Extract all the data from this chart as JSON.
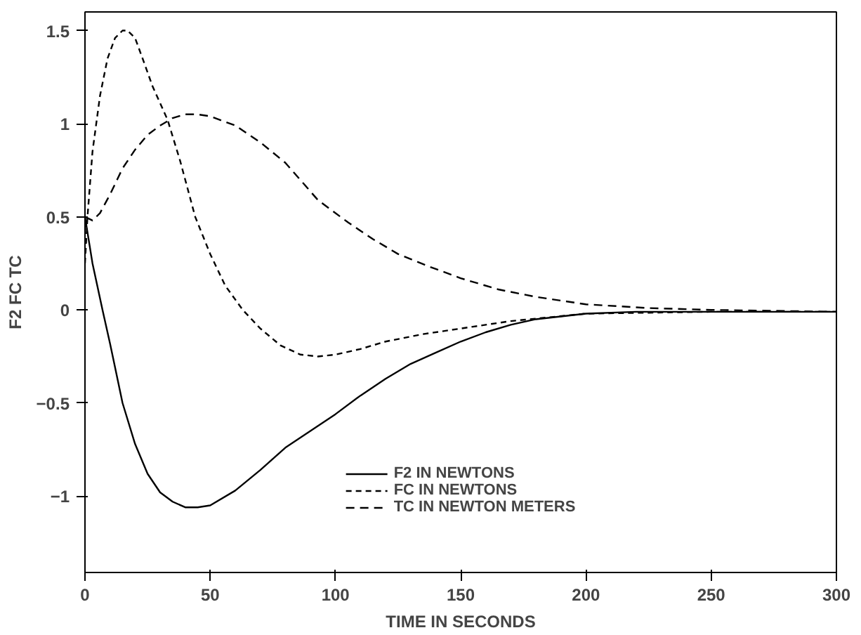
{
  "chart_data": {
    "type": "line",
    "xlabel": "TIME IN SECONDS",
    "ylabel": "F2 FC TC",
    "xlim": [
      0,
      300
    ],
    "ylim": [
      -1.41,
      1.6
    ],
    "xticks": [
      0,
      50,
      100,
      150,
      200,
      250,
      300
    ],
    "yticks": [
      {
        "value": -1,
        "label": "−1"
      },
      {
        "value": -0.5,
        "label": "−0.5"
      },
      0,
      0.5,
      1,
      1.5
    ],
    "grid": false,
    "legend": "bottom",
    "marker": "none",
    "series": [
      {
        "name": "F2 IN NEWTONS",
        "color": "#000000",
        "line_style": "solid",
        "x": [
          0,
          3,
          7,
          10,
          15,
          20,
          25,
          30,
          35,
          40,
          45,
          50,
          60,
          70,
          80,
          90,
          100,
          110,
          120,
          130,
          140,
          150,
          160,
          170,
          180,
          200,
          220,
          250,
          300
        ],
        "values": [
          0.5,
          0.25,
          0,
          -0.18,
          -0.5,
          -0.72,
          -0.88,
          -0.98,
          -1.03,
          -1.06,
          -1.06,
          -1.05,
          -0.97,
          -0.86,
          -0.74,
          -0.65,
          -0.56,
          -0.46,
          -0.37,
          -0.29,
          -0.23,
          -0.17,
          -0.12,
          -0.08,
          -0.05,
          -0.02,
          -0.01,
          -0.01,
          -0.01
        ]
      },
      {
        "name": "FC IN NEWTONS",
        "color": "#000000",
        "line_style": "dashed",
        "x": [
          0,
          1,
          3,
          6,
          9,
          12,
          15,
          17,
          20,
          23,
          27,
          33,
          38,
          44,
          50,
          56,
          63,
          70,
          78,
          86,
          93,
          100,
          110,
          120,
          135,
          150,
          170,
          200,
          250,
          300
        ],
        "values": [
          0.25,
          0.5,
          0.85,
          1.15,
          1.35,
          1.46,
          1.5,
          1.5,
          1.46,
          1.35,
          1.2,
          1.02,
          0.8,
          0.5,
          0.3,
          0.13,
          0,
          -0.1,
          -0.19,
          -0.24,
          -0.25,
          -0.24,
          -0.21,
          -0.17,
          -0.13,
          -0.1,
          -0.06,
          -0.02,
          -0.01,
          -0.01
        ]
      },
      {
        "name": "TC IN NEWTON METERS",
        "color": "#000000",
        "line_style": "dashed",
        "x": [
          0,
          3,
          6,
          10,
          15,
          20,
          25,
          30,
          35,
          40,
          45,
          50,
          60,
          70,
          80,
          93,
          105,
          115,
          125,
          137,
          150,
          165,
          180,
          200,
          225,
          250,
          300
        ],
        "values": [
          0.5,
          0.48,
          0.52,
          0.62,
          0.76,
          0.86,
          0.94,
          0.99,
          1.03,
          1.05,
          1.05,
          1.04,
          0.99,
          0.9,
          0.79,
          0.59,
          0.47,
          0.38,
          0.3,
          0.235,
          0.17,
          0.11,
          0.07,
          0.03,
          0.01,
          0.0,
          -0.01
        ]
      }
    ]
  }
}
